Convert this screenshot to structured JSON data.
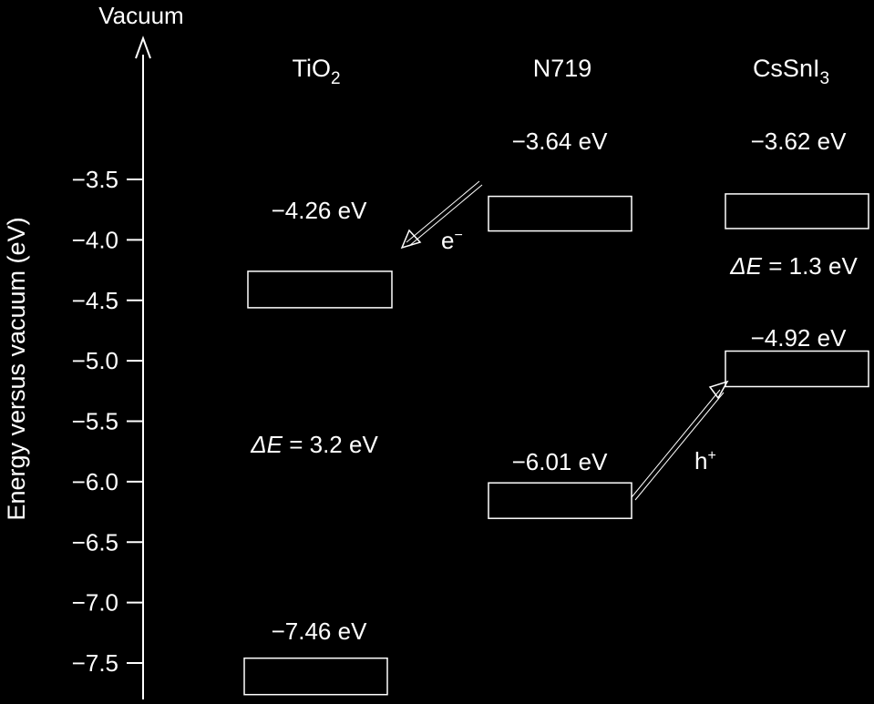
{
  "axis": {
    "top_label": "Vacuum",
    "ylabel": "Energy versus vacuum (eV)",
    "ticks": [
      {
        "value": -3.5,
        "label": "−3.5"
      },
      {
        "value": -4.0,
        "label": "−4.0"
      },
      {
        "value": -4.5,
        "label": "−4.5"
      },
      {
        "value": -5.0,
        "label": "−5.0"
      },
      {
        "value": -5.5,
        "label": "−5.5"
      },
      {
        "value": -6.0,
        "label": "−6.0"
      },
      {
        "value": -6.5,
        "label": "−6.5"
      },
      {
        "value": -7.0,
        "label": "−7.0"
      },
      {
        "value": -7.5,
        "label": "−7.5"
      }
    ]
  },
  "materials": {
    "tio2": {
      "name_main": "TiO",
      "name_sub": "2",
      "cb": {
        "value": -4.26,
        "label": "−4.26 eV"
      },
      "vb": {
        "value": -7.46,
        "label": "−7.46 eV"
      },
      "gap_symbol": "ΔE",
      "gap_text": " = 3.2 eV"
    },
    "n719": {
      "name": "N719",
      "lumo": {
        "value": -3.64,
        "label": "−3.64 eV"
      },
      "homo": {
        "value": -6.01,
        "label": "−6.01 eV"
      }
    },
    "cssni3": {
      "name_main": "CsSnI",
      "name_sub": "3",
      "cb": {
        "value": -3.62,
        "label": "−3.62 eV"
      },
      "vb": {
        "value": -4.92,
        "label": "−4.92 eV"
      },
      "gap_symbol": "ΔE",
      "gap_text": " = 1.3 eV"
    }
  },
  "arrows": {
    "electron": {
      "base": "e",
      "sup": "−"
    },
    "hole": {
      "base": "h",
      "sup": "+"
    }
  },
  "colors": {
    "background": "#000000",
    "foreground": "#ffffff"
  }
}
